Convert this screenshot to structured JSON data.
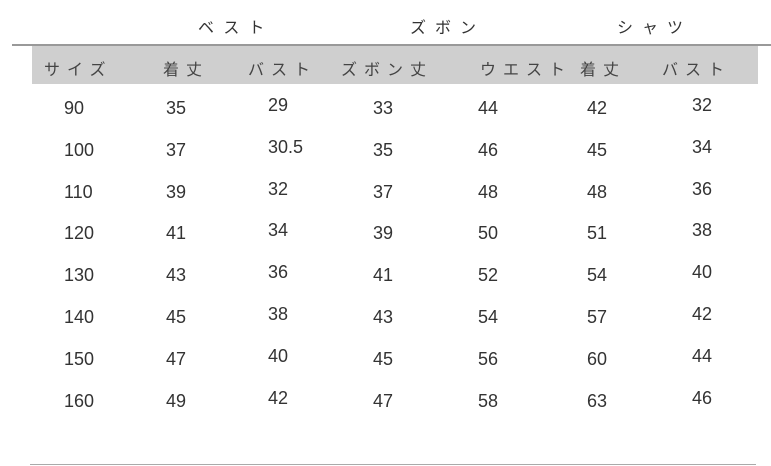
{
  "groups": [
    "ベスト",
    "ズボン",
    "シャツ"
  ],
  "headers": [
    "サイズ",
    "着丈",
    "バスト",
    "ズボン丈",
    "ウエスト",
    "着丈",
    "バスト"
  ],
  "rows": [
    [
      "90",
      "35",
      "29",
      "33",
      "44",
      "42",
      "32"
    ],
    [
      "100",
      "37",
      "30.5",
      "35",
      "46",
      "45",
      "34"
    ],
    [
      "110",
      "39",
      "32",
      "37",
      "48",
      "48",
      "36"
    ],
    [
      "120",
      "41",
      "34",
      "39",
      "50",
      "51",
      "38"
    ],
    [
      "130",
      "43",
      "36",
      "41",
      "52",
      "54",
      "40"
    ],
    [
      "140",
      "45",
      "38",
      "43",
      "54",
      "57",
      "42"
    ],
    [
      "150",
      "47",
      "40",
      "45",
      "56",
      "60",
      "44"
    ],
    [
      "160",
      "49",
      "42",
      "47",
      "58",
      "63",
      "46"
    ]
  ]
}
